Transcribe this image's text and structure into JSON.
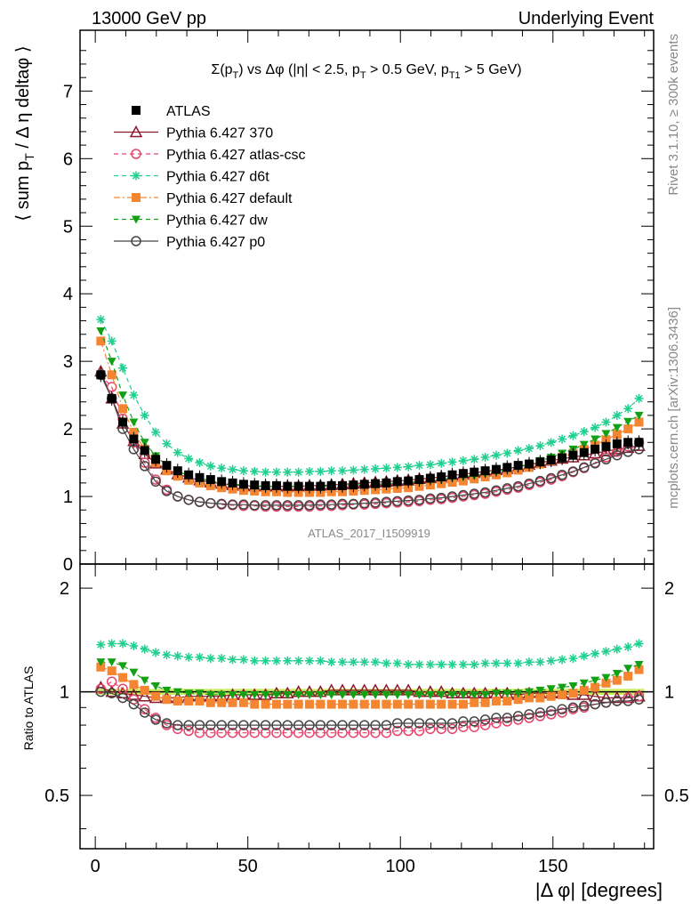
{
  "header": {
    "left": "13000 GeV pp",
    "right": "Underlying Event"
  },
  "side": {
    "rivet": "Rivet 3.1.10, ≥ 300k events",
    "mcplots": "mcplots.cern.ch [arXiv:1306.3436]"
  },
  "plot_title": "Σ(p_T) vs Δφ (|η| < 2.5, p_T > 0.5 GeV, p_T1 > 5 GeV)",
  "analysis_id": "ATLAS_2017_I1509919",
  "colors": {
    "ATLAS": "#000000",
    "370": "#8b1a2b",
    "atlas-csc": "#e8436a",
    "d6t": "#1fcf8f",
    "default": "#f48632",
    "dw": "#14a014",
    "p0": "#444444",
    "band": "#ccee66"
  },
  "chart_data": [
    {
      "type": "scatter",
      "panel": "main",
      "ylabel": "⟨ sum p_T / Δη deltaφ ⟩",
      "xlim": [
        -5,
        183
      ],
      "ylim": [
        0,
        7.9
      ],
      "yticks": [
        "0",
        "1",
        "2",
        "3",
        "4",
        "5",
        "6",
        "7"
      ],
      "legend_position": "top-left",
      "x_step_deg": 3.6,
      "x_first_deg": 1.8,
      "series": [
        {
          "name": "ATLAS",
          "key": "ATLAS",
          "marker": "square-filled",
          "values": [
            2.8,
            2.45,
            2.1,
            1.85,
            1.68,
            1.55,
            1.46,
            1.38,
            1.32,
            1.28,
            1.25,
            1.22,
            1.2,
            1.18,
            1.17,
            1.16,
            1.16,
            1.15,
            1.15,
            1.15,
            1.15,
            1.16,
            1.16,
            1.17,
            1.18,
            1.19,
            1.2,
            1.22,
            1.23,
            1.25,
            1.27,
            1.29,
            1.32,
            1.34,
            1.36,
            1.38,
            1.4,
            1.43,
            1.46,
            1.48,
            1.51,
            1.54,
            1.57,
            1.61,
            1.65,
            1.7,
            1.74,
            1.78,
            1.8,
            1.8
          ]
        },
        {
          "name": "Pythia 6.427 370",
          "key": "370",
          "marker": "triangle-open",
          "line": "solid",
          "values": [
            2.85,
            2.45,
            2.08,
            1.82,
            1.63,
            1.49,
            1.4,
            1.33,
            1.28,
            1.24,
            1.21,
            1.19,
            1.17,
            1.16,
            1.15,
            1.15,
            1.15,
            1.15,
            1.15,
            1.16,
            1.16,
            1.17,
            1.18,
            1.19,
            1.2,
            1.21,
            1.22,
            1.23,
            1.24,
            1.26,
            1.27,
            1.29,
            1.31,
            1.33,
            1.35,
            1.37,
            1.39,
            1.41,
            1.44,
            1.47,
            1.5,
            1.53,
            1.56,
            1.58,
            1.61,
            1.64,
            1.67,
            1.7,
            1.72,
            1.75
          ]
        },
        {
          "name": "Pythia 6.427 atlas-csc",
          "key": "atlas-csc",
          "marker": "circle-open",
          "line": "dashed",
          "values": [
            2.8,
            2.62,
            2.15,
            1.8,
            1.5,
            1.25,
            1.1,
            1.0,
            0.95,
            0.92,
            0.9,
            0.88,
            0.87,
            0.86,
            0.86,
            0.85,
            0.85,
            0.85,
            0.85,
            0.85,
            0.86,
            0.86,
            0.87,
            0.88,
            0.88,
            0.89,
            0.9,
            0.91,
            0.92,
            0.93,
            0.95,
            0.96,
            0.98,
            1.0,
            1.02,
            1.04,
            1.07,
            1.1,
            1.13,
            1.17,
            1.21,
            1.25,
            1.3,
            1.36,
            1.42,
            1.5,
            1.58,
            1.66,
            1.74,
            1.8
          ]
        },
        {
          "name": "Pythia 6.427 d6t",
          "key": "d6t",
          "marker": "star",
          "line": "dashed",
          "values": [
            3.62,
            3.3,
            2.9,
            2.5,
            2.2,
            1.95,
            1.78,
            1.65,
            1.56,
            1.5,
            1.45,
            1.42,
            1.4,
            1.38,
            1.37,
            1.36,
            1.36,
            1.36,
            1.36,
            1.37,
            1.37,
            1.38,
            1.38,
            1.39,
            1.4,
            1.41,
            1.42,
            1.43,
            1.44,
            1.46,
            1.47,
            1.49,
            1.51,
            1.53,
            1.55,
            1.58,
            1.61,
            1.64,
            1.68,
            1.71,
            1.75,
            1.8,
            1.85,
            1.9,
            1.96,
            2.02,
            2.1,
            2.2,
            2.3,
            2.45
          ]
        },
        {
          "name": "Pythia 6.427 default",
          "key": "default",
          "marker": "square-filled",
          "line": "dashdot",
          "values": [
            3.3,
            2.8,
            2.3,
            1.95,
            1.7,
            1.5,
            1.38,
            1.3,
            1.24,
            1.2,
            1.16,
            1.13,
            1.11,
            1.09,
            1.08,
            1.07,
            1.07,
            1.06,
            1.06,
            1.06,
            1.06,
            1.07,
            1.07,
            1.08,
            1.09,
            1.1,
            1.11,
            1.12,
            1.13,
            1.15,
            1.17,
            1.19,
            1.21,
            1.23,
            1.26,
            1.29,
            1.32,
            1.35,
            1.39,
            1.43,
            1.48,
            1.53,
            1.58,
            1.64,
            1.7,
            1.76,
            1.84,
            1.92,
            2.0,
            2.1
          ]
        },
        {
          "name": "Pythia 6.427 dw",
          "key": "dw",
          "marker": "triangle-down-filled",
          "line": "dashed",
          "values": [
            3.45,
            3.0,
            2.5,
            2.1,
            1.8,
            1.6,
            1.46,
            1.37,
            1.31,
            1.27,
            1.23,
            1.2,
            1.18,
            1.17,
            1.16,
            1.15,
            1.15,
            1.15,
            1.15,
            1.15,
            1.15,
            1.16,
            1.16,
            1.17,
            1.17,
            1.18,
            1.19,
            1.2,
            1.21,
            1.22,
            1.24,
            1.25,
            1.27,
            1.29,
            1.31,
            1.34,
            1.37,
            1.4,
            1.44,
            1.48,
            1.53,
            1.58,
            1.64,
            1.7,
            1.77,
            1.85,
            1.93,
            2.02,
            2.11,
            2.2
          ]
        },
        {
          "name": "Pythia 6.427 p0",
          "key": "p0",
          "marker": "circle-open",
          "line": "solid",
          "values": [
            2.8,
            2.45,
            2.0,
            1.7,
            1.45,
            1.22,
            1.08,
            1.0,
            0.95,
            0.92,
            0.9,
            0.89,
            0.88,
            0.88,
            0.87,
            0.87,
            0.87,
            0.87,
            0.87,
            0.87,
            0.88,
            0.88,
            0.89,
            0.89,
            0.9,
            0.91,
            0.92,
            0.93,
            0.94,
            0.95,
            0.97,
            0.98,
            1.0,
            1.02,
            1.04,
            1.06,
            1.09,
            1.12,
            1.15,
            1.19,
            1.23,
            1.27,
            1.32,
            1.37,
            1.43,
            1.49,
            1.55,
            1.61,
            1.66,
            1.7
          ]
        }
      ]
    },
    {
      "type": "scatter",
      "panel": "ratio",
      "xlabel": "|Δ φ| [degrees]",
      "ylabel": "Ratio to ATLAS",
      "xlim": [
        -5,
        183
      ],
      "ylim": [
        0.35,
        2.35
      ],
      "xticks": [
        "0",
        "50",
        "100",
        "150"
      ],
      "yticks": [
        "0.5",
        "1",
        "2"
      ],
      "band": [
        0.98,
        1.02
      ],
      "x_step_deg": 3.6,
      "x_first_deg": 1.8,
      "series": [
        {
          "key": "370",
          "marker": "triangle-open",
          "line": "solid",
          "values": [
            1.03,
            1.0,
            0.99,
            0.98,
            0.97,
            0.96,
            0.96,
            0.96,
            0.97,
            0.97,
            0.97,
            0.97,
            0.98,
            0.98,
            0.98,
            0.98,
            0.99,
            0.99,
            1.0,
            1.0,
            1.0,
            1.01,
            1.01,
            1.01,
            1.01,
            1.01,
            1.01,
            1.01,
            1.01,
            1.0,
            1.0,
            1.0,
            0.99,
            0.99,
            0.99,
            0.99,
            0.99,
            0.99,
            0.98,
            0.99,
            0.99,
            0.99,
            0.99,
            0.98,
            0.98,
            0.97,
            0.96,
            0.96,
            0.96,
            0.97
          ]
        },
        {
          "key": "atlas-csc",
          "marker": "circle-open",
          "line": "dashed",
          "values": [
            1.02,
            1.07,
            1.02,
            0.95,
            0.89,
            0.84,
            0.8,
            0.78,
            0.77,
            0.76,
            0.76,
            0.76,
            0.76,
            0.76,
            0.76,
            0.76,
            0.76,
            0.76,
            0.76,
            0.76,
            0.76,
            0.76,
            0.76,
            0.76,
            0.76,
            0.76,
            0.76,
            0.77,
            0.77,
            0.77,
            0.78,
            0.78,
            0.78,
            0.79,
            0.79,
            0.8,
            0.81,
            0.82,
            0.83,
            0.84,
            0.85,
            0.86,
            0.87,
            0.89,
            0.9,
            0.92,
            0.93,
            0.94,
            0.96,
            0.97
          ]
        },
        {
          "key": "d6t",
          "marker": "star",
          "line": "dashed",
          "values": [
            1.37,
            1.38,
            1.38,
            1.36,
            1.33,
            1.3,
            1.28,
            1.27,
            1.26,
            1.26,
            1.25,
            1.25,
            1.24,
            1.24,
            1.23,
            1.23,
            1.23,
            1.23,
            1.23,
            1.23,
            1.23,
            1.22,
            1.22,
            1.22,
            1.22,
            1.22,
            1.21,
            1.21,
            1.2,
            1.2,
            1.2,
            1.2,
            1.2,
            1.2,
            1.2,
            1.21,
            1.21,
            1.21,
            1.21,
            1.22,
            1.22,
            1.23,
            1.24,
            1.25,
            1.27,
            1.29,
            1.31,
            1.33,
            1.35,
            1.38
          ]
        },
        {
          "key": "default",
          "marker": "square-filled",
          "line": "dashdot",
          "values": [
            1.18,
            1.15,
            1.1,
            1.05,
            1.01,
            0.97,
            0.95,
            0.94,
            0.94,
            0.94,
            0.93,
            0.93,
            0.93,
            0.93,
            0.92,
            0.92,
            0.92,
            0.92,
            0.92,
            0.92,
            0.92,
            0.92,
            0.92,
            0.92,
            0.92,
            0.92,
            0.92,
            0.92,
            0.92,
            0.92,
            0.92,
            0.92,
            0.92,
            0.92,
            0.93,
            0.93,
            0.94,
            0.94,
            0.95,
            0.96,
            0.96,
            0.97,
            0.98,
            0.99,
            1.01,
            1.03,
            1.06,
            1.08,
            1.11,
            1.16
          ]
        },
        {
          "key": "dw",
          "marker": "triangle-down-filled",
          "line": "dashed",
          "values": [
            1.22,
            1.22,
            1.19,
            1.14,
            1.08,
            1.04,
            1.01,
            1.0,
            0.99,
            0.99,
            0.98,
            0.98,
            0.98,
            0.98,
            0.98,
            0.98,
            0.98,
            0.98,
            0.98,
            0.98,
            0.98,
            0.98,
            0.98,
            0.98,
            0.98,
            0.98,
            0.98,
            0.98,
            0.98,
            0.98,
            0.98,
            0.98,
            0.98,
            0.98,
            0.98,
            0.98,
            0.99,
            0.99,
            0.99,
            1.0,
            1.01,
            1.02,
            1.03,
            1.04,
            1.06,
            1.08,
            1.1,
            1.13,
            1.17,
            1.2
          ]
        },
        {
          "key": "p0",
          "marker": "circle-open",
          "line": "solid",
          "values": [
            1.0,
            0.99,
            0.96,
            0.92,
            0.87,
            0.83,
            0.81,
            0.8,
            0.8,
            0.8,
            0.8,
            0.8,
            0.8,
            0.8,
            0.8,
            0.8,
            0.8,
            0.8,
            0.8,
            0.8,
            0.8,
            0.8,
            0.8,
            0.8,
            0.8,
            0.8,
            0.8,
            0.81,
            0.81,
            0.81,
            0.81,
            0.81,
            0.81,
            0.82,
            0.82,
            0.83,
            0.84,
            0.84,
            0.85,
            0.86,
            0.87,
            0.88,
            0.89,
            0.9,
            0.91,
            0.92,
            0.93,
            0.94,
            0.94,
            0.95
          ]
        }
      ]
    }
  ]
}
